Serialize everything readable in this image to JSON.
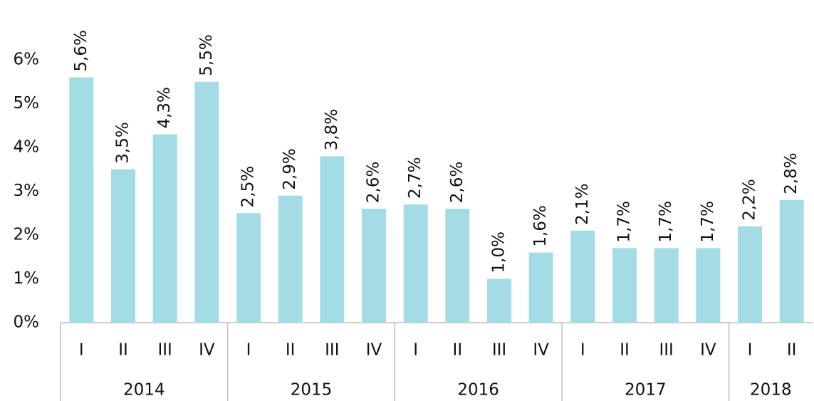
{
  "chart_data": {
    "type": "bar",
    "groups": [
      {
        "name": "2014",
        "categories": [
          "I",
          "II",
          "III",
          "IV"
        ]
      },
      {
        "name": "2015",
        "categories": [
          "I",
          "II",
          "III",
          "IV"
        ]
      },
      {
        "name": "2016",
        "categories": [
          "I",
          "II",
          "III",
          "IV"
        ]
      },
      {
        "name": "2017",
        "categories": [
          "I",
          "II",
          "III",
          "IV"
        ]
      },
      {
        "name": "2018",
        "categories": [
          "I",
          "II"
        ]
      }
    ],
    "values": [
      5.6,
      3.5,
      4.3,
      5.5,
      2.5,
      2.9,
      3.8,
      2.6,
      2.7,
      2.6,
      1.0,
      1.6,
      2.1,
      1.7,
      1.7,
      1.7,
      2.2,
      2.8
    ],
    "value_labels": [
      "5,6%",
      "3,5%",
      "4,3%",
      "5,5%",
      "2,5%",
      "2,9%",
      "3,8%",
      "2,6%",
      "2,7%",
      "2,6%",
      "1,0%",
      "1,6%",
      "2,1%",
      "1,7%",
      "1,7%",
      "1,7%",
      "2,2%",
      "2,8%"
    ],
    "color": "#a3dce4",
    "ylim": [
      0,
      6
    ],
    "yticks": [
      {
        "value": 0,
        "label": "0%"
      },
      {
        "value": 1,
        "label": "1%"
      },
      {
        "value": 2,
        "label": "2%"
      },
      {
        "value": 3,
        "label": "3%"
      },
      {
        "value": 4,
        "label": "4%"
      },
      {
        "value": 5,
        "label": "5%"
      },
      {
        "value": 6,
        "label": "6%"
      }
    ],
    "grid": false
  }
}
